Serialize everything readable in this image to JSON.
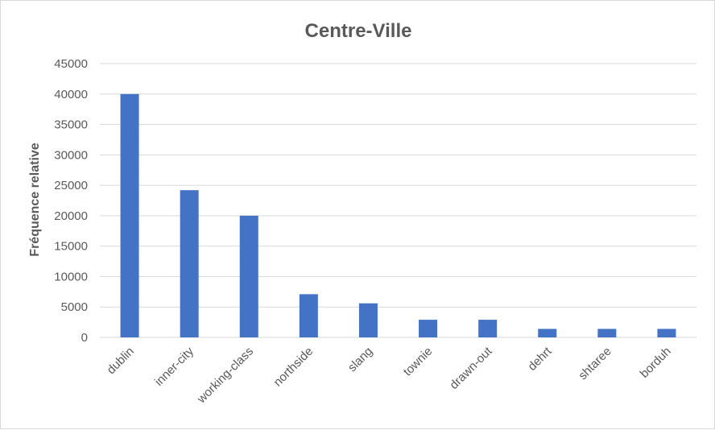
{
  "chart_data": {
    "type": "bar",
    "title": "Centre-Ville",
    "xlabel": "",
    "ylabel": "Fréquence relative",
    "ylim": [
      0,
      45000
    ],
    "yticks": [
      0,
      5000,
      10000,
      15000,
      20000,
      25000,
      30000,
      35000,
      40000,
      45000
    ],
    "categories": [
      "dublin",
      "inner-city",
      "working-class",
      "northside",
      "slang",
      "townie",
      "drawn-out",
      "dehrt",
      "shtaree",
      "borduh"
    ],
    "values": [
      40000,
      24200,
      20000,
      7100,
      5600,
      2900,
      2900,
      1400,
      1400,
      1400
    ],
    "grid": true,
    "legend": "none",
    "bar_color": "#4472c4"
  }
}
